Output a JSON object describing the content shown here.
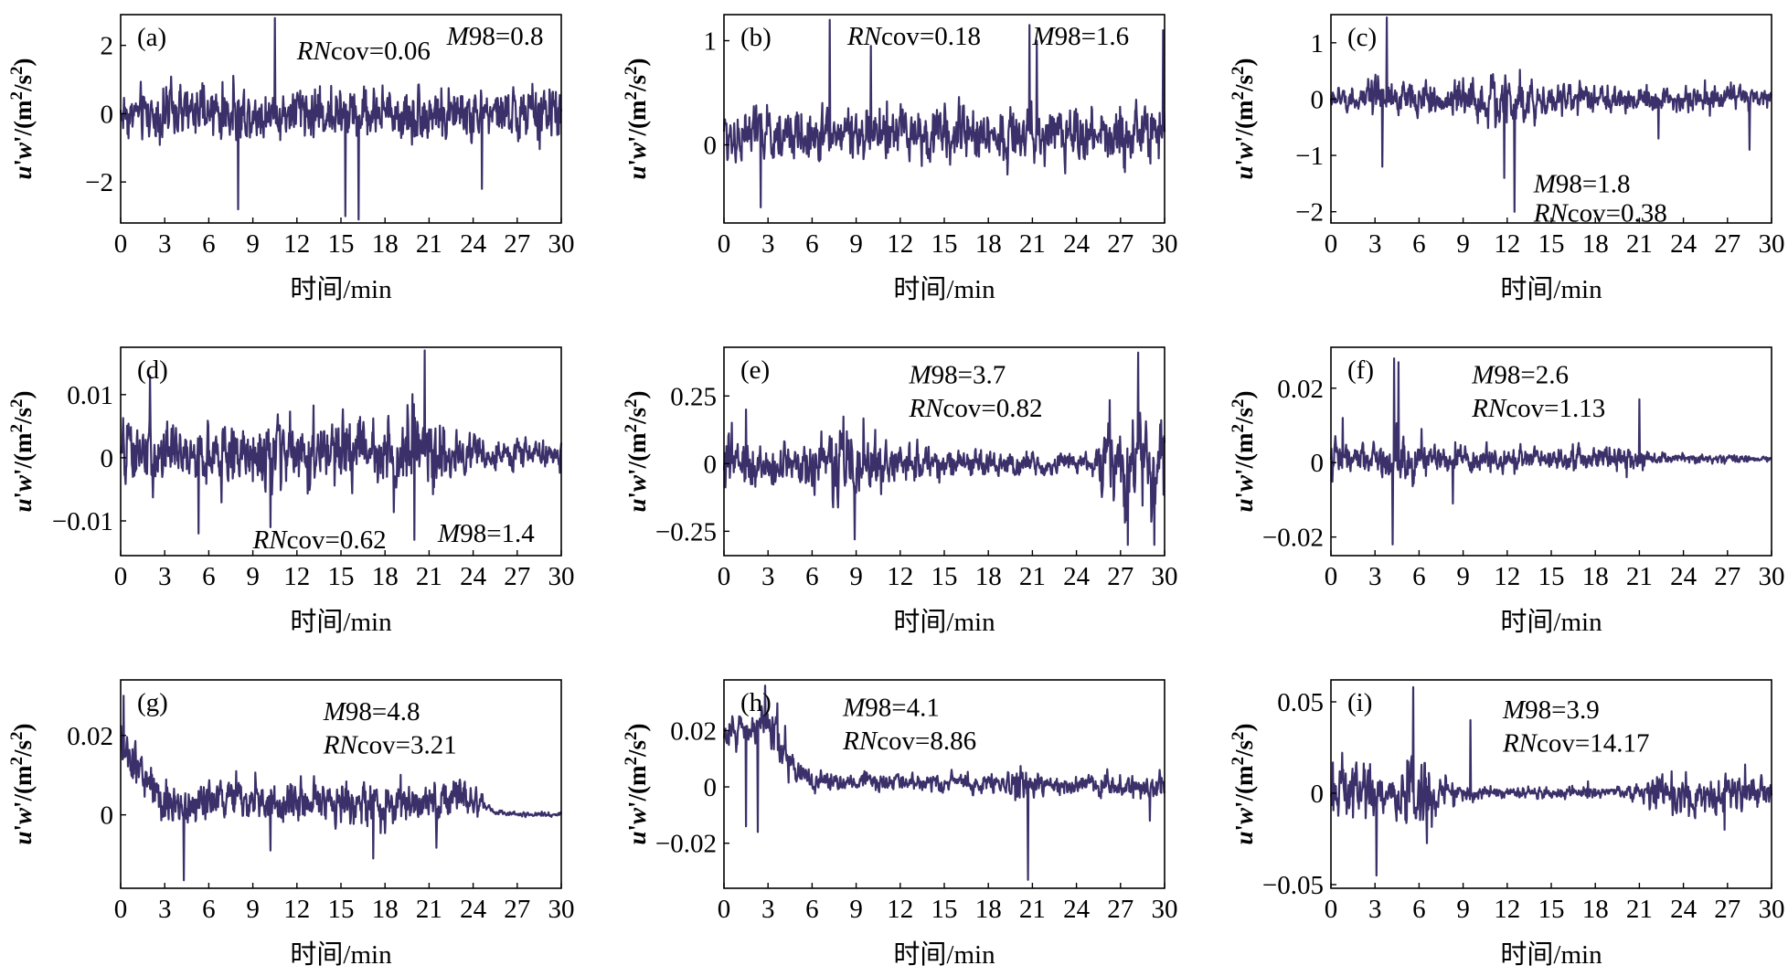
{
  "figure": {
    "background": "#ffffff",
    "series_color": "#3b3069",
    "axis_color": "#000000"
  },
  "chart_data": [
    {
      "type": "line",
      "panel": "(a)",
      "xlabel": "时间/min",
      "ylabel": {
        "u": "u",
        "p1": "'",
        "w": "w",
        "p2": "'/(m",
        "sup": "2",
        "mid": "/s",
        "end": ")"
      },
      "xlim": [
        0,
        30
      ],
      "ylim": [
        -3.2,
        2.9
      ],
      "xticks": [
        0,
        3,
        6,
        9,
        12,
        15,
        18,
        21,
        24,
        27,
        30
      ],
      "yticks": [
        -2,
        0,
        2
      ],
      "ytick_labels": [
        "−2",
        "0",
        "2"
      ],
      "annotations": [
        {
          "ital": "RN",
          "rest": "cov=0.06",
          "pos": "upper-center"
        },
        {
          "ital": "M",
          "rest": "98=0.8",
          "pos": "upper-right"
        }
      ],
      "signal": {
        "baseline": 0.0,
        "noise": 0.55,
        "max": 2.8,
        "min": -3.1,
        "spikes": [
          [
            10.5,
            2.8
          ],
          [
            15.3,
            -3.0
          ],
          [
            16.2,
            -3.1
          ],
          [
            8.0,
            -2.8
          ],
          [
            24.6,
            -2.2
          ]
        ],
        "envelope": [
          [
            0,
            1.0
          ],
          [
            30,
            1.0
          ]
        ]
      }
    },
    {
      "type": "line",
      "panel": "(b)",
      "xlabel": "时间/min",
      "ylabel": {
        "u": "u",
        "p1": "'",
        "w": "w",
        "p2": "'/(m",
        "sup": "2",
        "mid": "/s",
        "end": ")"
      },
      "xlim": [
        0,
        30
      ],
      "ylim": [
        -0.75,
        1.25
      ],
      "xticks": [
        0,
        3,
        6,
        9,
        12,
        15,
        18,
        21,
        24,
        27,
        30
      ],
      "yticks": [
        0,
        1
      ],
      "ytick_labels": [
        "0",
        "1"
      ],
      "annotations": [
        {
          "ital": "RN",
          "rest": "cov=0.18",
          "pos": "upper-center"
        },
        {
          "ital": "M",
          "rest": "98=1.6",
          "pos": "upper-right"
        }
      ],
      "signal": {
        "baseline": 0.1,
        "noise": 0.18,
        "max": 1.2,
        "min": -0.65,
        "spikes": [
          [
            7.2,
            1.2
          ],
          [
            20.8,
            1.15
          ],
          [
            21.3,
            1.0
          ],
          [
            10.0,
            0.95
          ],
          [
            29.9,
            1.1
          ],
          [
            2.5,
            -0.6
          ]
        ],
        "envelope": [
          [
            0,
            1.0
          ],
          [
            30,
            1.0
          ]
        ]
      }
    },
    {
      "type": "line",
      "panel": "(c)",
      "xlabel": "时间/min",
      "ylabel": {
        "u": "u",
        "p1": "'",
        "w": "w",
        "p2": "'/(m",
        "sup": "2",
        "mid": "/s",
        "end": ")"
      },
      "xlim": [
        0,
        30
      ],
      "ylim": [
        -2.2,
        1.5
      ],
      "xticks": [
        0,
        3,
        6,
        9,
        12,
        15,
        18,
        21,
        24,
        27,
        30
      ],
      "yticks": [
        -2,
        -1,
        0,
        1
      ],
      "ytick_labels": [
        "−2",
        "−1",
        "0",
        "1"
      ],
      "annotations": [
        {
          "ital": "M",
          "rest": "98=1.8",
          "pos": "lower-center"
        },
        {
          "ital": "RN",
          "rest": "cov=0.38",
          "pos": "lower-center-2"
        }
      ],
      "signal": {
        "baseline": 0.0,
        "noise": 0.18,
        "max": 1.45,
        "min": -2.0,
        "spikes": [
          [
            3.8,
            1.45
          ],
          [
            12.5,
            -2.0
          ],
          [
            11.8,
            -1.4
          ],
          [
            3.5,
            -1.2
          ],
          [
            22.3,
            -0.7
          ],
          [
            28.5,
            -0.9
          ]
        ],
        "envelope": [
          [
            0,
            0.8
          ],
          [
            3,
            1.4
          ],
          [
            5,
            1.0
          ],
          [
            10,
            1.6
          ],
          [
            13,
            2.4
          ],
          [
            14,
            1.0
          ],
          [
            30,
            0.8
          ]
        ]
      }
    },
    {
      "type": "line",
      "panel": "(d)",
      "xlabel": "时间/min",
      "ylabel": {
        "u": "u",
        "p1": "'",
        "w": "w",
        "p2": "'/(m",
        "sup": "2",
        "mid": "/s",
        "end": ")"
      },
      "xlim": [
        0,
        30
      ],
      "ylim": [
        -0.0155,
        0.0175
      ],
      "xticks": [
        0,
        3,
        6,
        9,
        12,
        15,
        18,
        21,
        24,
        27,
        30
      ],
      "yticks": [
        -0.01,
        0,
        0.01
      ],
      "ytick_labels": [
        "−0.01",
        "0",
        "0.01"
      ],
      "annotations": [
        {
          "ital": "RN",
          "rest": "cov=0.62",
          "pos": "lower-center"
        },
        {
          "ital": "M",
          "rest": "98=1.4",
          "pos": "lower-right"
        }
      ],
      "signal": {
        "baseline": 0.0005,
        "noise": 0.0035,
        "max": 0.017,
        "min": -0.013,
        "spikes": [
          [
            20.7,
            0.017
          ],
          [
            5.3,
            -0.012
          ],
          [
            20.0,
            -0.013
          ],
          [
            10.2,
            -0.011
          ],
          [
            2.0,
            0.013
          ]
        ],
        "envelope": [
          [
            0,
            1.0
          ],
          [
            19,
            1.1
          ],
          [
            21,
            1.4
          ],
          [
            23,
            0.6
          ],
          [
            30,
            0.35
          ]
        ]
      }
    },
    {
      "type": "line",
      "panel": "(e)",
      "xlabel": "时间/min",
      "ylabel": {
        "u": "u",
        "p1": "'",
        "w": "w",
        "p2": "'/(m",
        "sup": "2",
        "mid": "/s",
        "end": ")"
      },
      "xlim": [
        0,
        30
      ],
      "ylim": [
        -0.34,
        0.43
      ],
      "xticks": [
        0,
        3,
        6,
        9,
        12,
        15,
        18,
        21,
        24,
        27,
        30
      ],
      "yticks": [
        -0.25,
        0,
        0.25
      ],
      "ytick_labels": [
        "−0.25",
        "0",
        "0.25"
      ],
      "annotations": [
        {
          "ital": "M",
          "rest": "98=3.7",
          "pos": "upper-center"
        },
        {
          "ital": "RN",
          "rest": "cov=0.82",
          "pos": "upper-center-2"
        }
      ],
      "signal": {
        "baseline": 0.0,
        "noise": 0.06,
        "max": 0.41,
        "min": -0.3,
        "spikes": [
          [
            28.2,
            0.41
          ],
          [
            27.5,
            -0.3
          ],
          [
            29.3,
            -0.3
          ],
          [
            8.9,
            -0.28
          ],
          [
            1.5,
            0.2
          ]
        ],
        "envelope": [
          [
            0,
            1.3
          ],
          [
            5,
            0.9
          ],
          [
            9,
            1.6
          ],
          [
            12,
            0.9
          ],
          [
            20,
            0.5
          ],
          [
            25,
            0.4
          ],
          [
            26,
            1.8
          ],
          [
            30,
            2.2
          ]
        ]
      }
    },
    {
      "type": "line",
      "panel": "(f)",
      "xlabel": "时间/min",
      "ylabel": {
        "u": "u",
        "p1": "'",
        "w": "w",
        "p2": "'/(m",
        "sup": "2",
        "mid": "/s",
        "end": ")"
      },
      "xlim": [
        0,
        30
      ],
      "ylim": [
        -0.025,
        0.031
      ],
      "xticks": [
        0,
        3,
        6,
        9,
        12,
        15,
        18,
        21,
        24,
        27,
        30
      ],
      "yticks": [
        -0.02,
        0,
        0.02
      ],
      "ytick_labels": [
        "−0.02",
        "0",
        "0.02"
      ],
      "annotations": [
        {
          "ital": "M",
          "rest": "98=2.6",
          "pos": "upper-center"
        },
        {
          "ital": "RN",
          "rest": "cov=1.13",
          "pos": "upper-center-2"
        }
      ],
      "signal": {
        "baseline": 0.001,
        "noise": 0.0022,
        "max": 0.028,
        "min": -0.022,
        "spikes": [
          [
            4.3,
            0.028
          ],
          [
            4.6,
            0.027
          ],
          [
            4.2,
            -0.022
          ],
          [
            21.0,
            0.017
          ],
          [
            8.3,
            -0.011
          ],
          [
            0.8,
            0.012
          ]
        ],
        "envelope": [
          [
            0,
            1.5
          ],
          [
            3,
            1.5
          ],
          [
            5,
            2.0
          ],
          [
            8,
            1.0
          ],
          [
            21,
            1.0
          ],
          [
            22,
            0.5
          ],
          [
            30,
            0.25
          ]
        ]
      }
    },
    {
      "type": "line",
      "panel": "(g)",
      "xlabel": "时间/min",
      "ylabel": {
        "u": "u",
        "p1": "'",
        "w": "w",
        "p2": "'/(m",
        "sup": "2",
        "mid": "/s",
        "end": ")"
      },
      "xlim": [
        0,
        30
      ],
      "ylim": [
        -0.0185,
        0.034
      ],
      "xticks": [
        0,
        3,
        6,
        9,
        12,
        15,
        18,
        21,
        24,
        27,
        30
      ],
      "yticks": [
        0,
        0.02
      ],
      "ytick_labels": [
        "0",
        "0.02"
      ],
      "annotations": [
        {
          "ital": "M",
          "rest": "98=4.8",
          "pos": "upper-center"
        },
        {
          "ital": "RN",
          "rest": "cov=3.21",
          "pos": "upper-center-2"
        }
      ],
      "signal": {
        "baseline": 0.002,
        "noise": 0.0035,
        "max": 0.03,
        "min": -0.0165,
        "spikes": [
          [
            0.2,
            0.03
          ],
          [
            4.3,
            -0.0165
          ],
          [
            17.2,
            -0.011
          ],
          [
            10.2,
            -0.009
          ]
        ],
        "trend": [
          [
            0,
            0.018
          ],
          [
            1.5,
            0.01
          ],
          [
            3,
            0.003
          ],
          [
            24.5,
            0.003
          ],
          [
            25.5,
            0.0005
          ],
          [
            30,
            0.0
          ]
        ],
        "envelope": [
          [
            0,
            1.2
          ],
          [
            24,
            1.0
          ],
          [
            25,
            0.15
          ],
          [
            30,
            0.1
          ]
        ]
      }
    },
    {
      "type": "line",
      "panel": "(h)",
      "xlabel": "时间/min",
      "ylabel": {
        "u": "u",
        "p1": "'",
        "w": "w",
        "p2": "'/(m",
        "sup": "2",
        "mid": "/s",
        "end": ")"
      },
      "xlim": [
        0,
        30
      ],
      "ylim": [
        -0.036,
        0.038
      ],
      "xticks": [
        0,
        3,
        6,
        9,
        12,
        15,
        18,
        21,
        24,
        27,
        30
      ],
      "yticks": [
        -0.02,
        0,
        0.02
      ],
      "ytick_labels": [
        "−0.02",
        "0",
        "0.02"
      ],
      "annotations": [
        {
          "ital": "M",
          "rest": "98=4.1",
          "pos": "upper-center"
        },
        {
          "ital": "RN",
          "rest": "cov=8.86",
          "pos": "upper-center-2"
        }
      ],
      "signal": {
        "baseline": 0.0,
        "noise": 0.0028,
        "max": 0.036,
        "min": -0.033,
        "spikes": [
          [
            20.7,
            -0.033
          ],
          [
            2.3,
            -0.016
          ],
          [
            1.5,
            -0.014
          ],
          [
            29.0,
            -0.012
          ],
          [
            2.8,
            0.036
          ]
        ],
        "trend": [
          [
            0,
            0.018
          ],
          [
            3,
            0.024
          ],
          [
            4.5,
            0.008
          ],
          [
            6,
            0.002
          ],
          [
            30,
            0.0
          ]
        ],
        "envelope": [
          [
            0,
            1.4
          ],
          [
            4,
            1.8
          ],
          [
            6,
            0.8
          ],
          [
            19,
            0.8
          ],
          [
            20,
            2.0
          ],
          [
            22,
            0.8
          ],
          [
            30,
            1.3
          ]
        ]
      }
    },
    {
      "type": "line",
      "panel": "(i)",
      "xlabel": "时间/min",
      "ylabel": {
        "u": "u",
        "p1": "'",
        "w": "w",
        "p2": "'/(m",
        "sup": "2",
        "mid": "/s",
        "end": ")"
      },
      "xlim": [
        0,
        30
      ],
      "ylim": [
        -0.052,
        0.062
      ],
      "xticks": [
        0,
        3,
        6,
        9,
        12,
        15,
        18,
        21,
        24,
        27,
        30
      ],
      "yticks": [
        -0.05,
        0,
        0.05
      ],
      "ytick_labels": [
        "−0.05",
        "0",
        "0.05"
      ],
      "annotations": [
        {
          "ital": "M",
          "rest": "98=3.9",
          "pos": "upper-center"
        },
        {
          "ital": "RN",
          "rest": "cov=14.17",
          "pos": "upper-center-2"
        }
      ],
      "signal": {
        "baseline": 0.0,
        "noise": 0.006,
        "max": 0.058,
        "min": -0.045,
        "spikes": [
          [
            5.6,
            0.058
          ],
          [
            3.1,
            -0.045
          ],
          [
            9.5,
            0.04
          ],
          [
            26.8,
            -0.02
          ]
        ],
        "envelope": [
          [
            0,
            1.4
          ],
          [
            2,
            2.0
          ],
          [
            4,
            1.0
          ],
          [
            5.5,
            3.0
          ],
          [
            8,
            1.0
          ],
          [
            10,
            0.4
          ],
          [
            20,
            0.4
          ],
          [
            22,
            1.2
          ],
          [
            30,
            1.0
          ]
        ]
      }
    }
  ]
}
